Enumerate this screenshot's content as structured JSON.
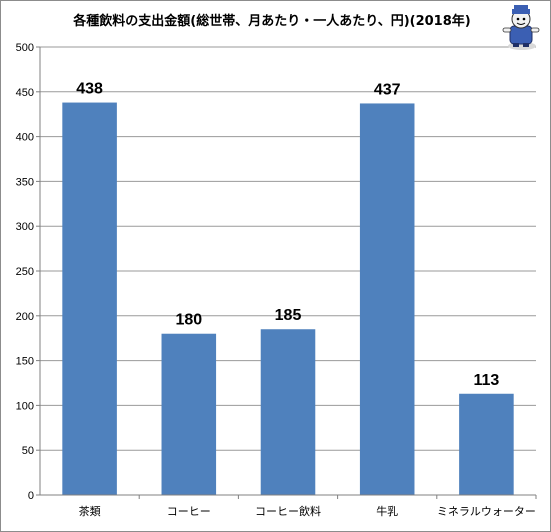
{
  "chart_data": {
    "type": "bar",
    "title": "各種飲料の支出金額(総世帯、月あたり・一人あたり、円)(2018年)",
    "categories": [
      "茶類",
      "コーヒー",
      "コーヒー飲料",
      "牛乳",
      "ミネラルウォーター"
    ],
    "values": [
      438,
      180,
      185,
      437,
      113
    ],
    "data_labels": [
      "438",
      "180",
      "185",
      "437",
      "113"
    ],
    "ylim": [
      0,
      500
    ],
    "yticks": [
      "0",
      "50",
      "100",
      "150",
      "200",
      "250",
      "300",
      "350",
      "400",
      "450",
      "500"
    ],
    "grid": true,
    "legend": "none",
    "colors": {
      "bar": "#4f81bd",
      "grid": "#9a9a9a",
      "axis": "#808080"
    }
  },
  "mascot": {
    "icon": "mascot-character-icon"
  }
}
